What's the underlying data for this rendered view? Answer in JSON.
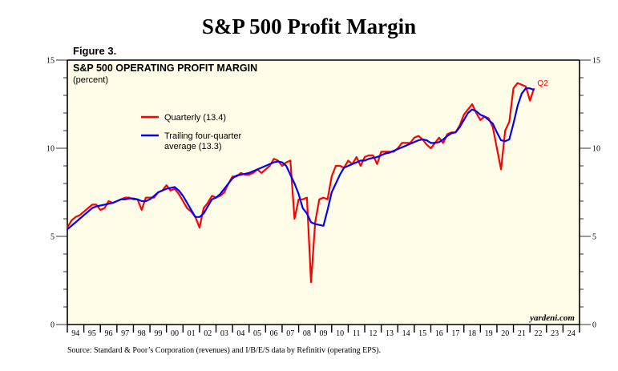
{
  "page": {
    "title": "S&P 500 Profit Margin",
    "figure_label": "Figure 3.",
    "source": "Source: Standard & Poor’s Corporation (revenues) and I/B/E/S data by Refinitiv (operating EPS).",
    "watermark": "yardeni.com"
  },
  "colors": {
    "background": "#fffde8",
    "quarterly": "#ff0000",
    "trailing": "#0000ff"
  },
  "chart_data": {
    "type": "line",
    "title": "S&P 500 OPERATING PROFIT MARGIN",
    "subtitle": "(percent)",
    "xlabel": "",
    "ylabel": "",
    "ylim": [
      0,
      15
    ],
    "xlim": [
      1994,
      2025
    ],
    "yticks": [
      "0",
      "5",
      "10",
      "15"
    ],
    "ytick_values": [
      0,
      5,
      10,
      15
    ],
    "y_minor_step": 1,
    "xtick_labels": [
      "94",
      "95",
      "96",
      "97",
      "98",
      "99",
      "00",
      "01",
      "02",
      "03",
      "04",
      "05",
      "06",
      "07",
      "08",
      "09",
      "10",
      "11",
      "12",
      "13",
      "14",
      "15",
      "16",
      "17",
      "18",
      "19",
      "20",
      "21",
      "22",
      "23",
      "24"
    ],
    "grid": false,
    "legend_position": "upper-left",
    "end_annotation": "Q2",
    "x_start": 1994.0,
    "x_step": 0.25,
    "series": [
      {
        "name": "Quarterly (13.4)",
        "legend": "Quarterly (13.4)",
        "color": "#ff0000",
        "values": [
          5.5,
          5.9,
          6.1,
          6.2,
          6.4,
          6.6,
          6.8,
          6.8,
          6.5,
          6.6,
          7.0,
          6.9,
          7.0,
          7.1,
          7.2,
          7.2,
          7.1,
          7.1,
          6.5,
          7.2,
          7.2,
          7.2,
          7.5,
          7.6,
          7.9,
          7.6,
          7.7,
          7.4,
          7.0,
          6.6,
          6.4,
          6.1,
          5.5,
          6.6,
          6.9,
          7.3,
          7.2,
          7.3,
          7.5,
          8.0,
          8.4,
          8.4,
          8.6,
          8.5,
          8.5,
          8.6,
          8.8,
          8.6,
          8.8,
          9.0,
          9.4,
          9.3,
          9.0,
          9.2,
          9.3,
          6.0,
          7.1,
          7.1,
          7.2,
          2.4,
          5.8,
          7.1,
          7.2,
          7.1,
          8.4,
          9.0,
          9.0,
          8.9,
          9.3,
          9.1,
          9.5,
          9.0,
          9.5,
          9.6,
          9.6,
          9.1,
          9.8,
          9.8,
          9.8,
          9.8,
          10.0,
          10.3,
          10.3,
          10.3,
          10.6,
          10.7,
          10.5,
          10.2,
          10.0,
          10.3,
          10.6,
          10.3,
          10.8,
          10.9,
          10.9,
          11.3,
          11.9,
          12.2,
          12.5,
          12.0,
          11.6,
          11.8,
          11.7,
          11.2,
          10.0,
          8.8,
          11.0,
          11.5,
          13.4,
          13.7,
          13.6,
          13.5,
          12.7,
          13.4
        ],
        "label": "Q2"
      },
      {
        "name": "Trailing four-quarter average (13.3)",
        "legend": "Trailing four-quarter average (13.3)",
        "color": "#0000ff",
        "values": [
          5.4,
          5.6,
          5.8,
          6.0,
          6.2,
          6.4,
          6.6,
          6.7,
          6.75,
          6.8,
          6.85,
          6.9,
          7.0,
          7.1,
          7.1,
          7.15,
          7.15,
          7.1,
          7.0,
          7.0,
          7.1,
          7.3,
          7.5,
          7.6,
          7.7,
          7.75,
          7.8,
          7.6,
          7.3,
          6.9,
          6.5,
          6.1,
          6.1,
          6.3,
          6.7,
          7.1,
          7.2,
          7.4,
          7.7,
          8.0,
          8.3,
          8.45,
          8.5,
          8.55,
          8.6,
          8.7,
          8.8,
          8.9,
          9.0,
          9.1,
          9.2,
          9.25,
          9.2,
          9.0,
          8.5,
          8.0,
          7.4,
          6.6,
          6.3,
          5.8,
          5.7,
          5.65,
          5.6,
          6.5,
          7.5,
          8.0,
          8.5,
          8.9,
          9.0,
          9.1,
          9.2,
          9.3,
          9.3,
          9.4,
          9.45,
          9.5,
          9.6,
          9.7,
          9.75,
          9.85,
          9.95,
          10.05,
          10.15,
          10.25,
          10.35,
          10.45,
          10.5,
          10.45,
          10.3,
          10.3,
          10.35,
          10.5,
          10.7,
          10.85,
          10.9,
          11.2,
          11.6,
          12.0,
          12.2,
          12.1,
          11.9,
          11.8,
          11.6,
          11.4,
          10.9,
          10.45,
          10.4,
          10.5,
          11.4,
          12.4,
          13.1,
          13.4,
          13.4,
          13.3
        ],
        "label": ""
      }
    ]
  }
}
